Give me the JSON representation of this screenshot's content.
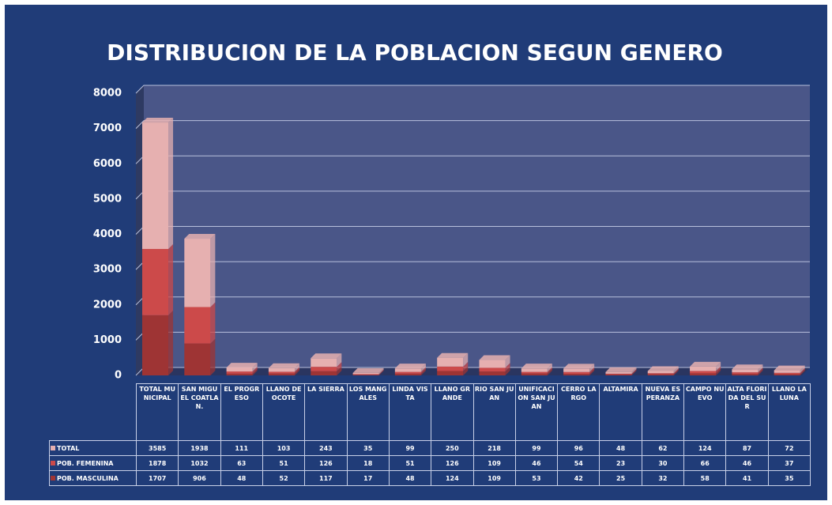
{
  "chart_data": {
    "type": "bar",
    "stacked": true,
    "title": "DISTRIBUCION DE LA POBLACION SEGUN GENERO",
    "categories": [
      "TOTAL MUNICIPAL",
      "SAN MIGUEL COATLAN.",
      "EL PROGRESO",
      "LLANO DE OCOTE",
      "LA SIERRA",
      "LOS MANGALES",
      "LINDA VISTA",
      "LLANO GRANDE",
      "RIO SAN JUAN",
      "UNIFICACION SAN JUAN",
      "CERRO LARGO",
      "ALTAMIRA",
      "NUEVA ESPERANZA",
      "CAMPO NUEVO",
      "ALTA FLORIDA DEL SUR",
      "LLANO LA LUNA"
    ],
    "series": [
      {
        "name": "TOTAL",
        "color": "#e6b0b0",
        "values": [
          3585,
          1938,
          111,
          103,
          243,
          35,
          99,
          250,
          218,
          99,
          96,
          48,
          62,
          124,
          87,
          72
        ]
      },
      {
        "name": "POB. FEMENINA",
        "color": "#cc4a4a",
        "values": [
          1878,
          1032,
          63,
          51,
          126,
          18,
          51,
          126,
          109,
          46,
          54,
          23,
          30,
          66,
          46,
          37
        ]
      },
      {
        "name": "POB. MASCULINA",
        "color": "#9e3434",
        "values": [
          1707,
          906,
          48,
          52,
          117,
          17,
          48,
          124,
          109,
          53,
          42,
          25,
          32,
          58,
          41,
          35
        ]
      }
    ],
    "ylim": [
      0,
      8000
    ],
    "yticks": [
      0,
      1000,
      2000,
      3000,
      4000,
      5000,
      6000,
      7000,
      8000
    ],
    "grid": true
  }
}
